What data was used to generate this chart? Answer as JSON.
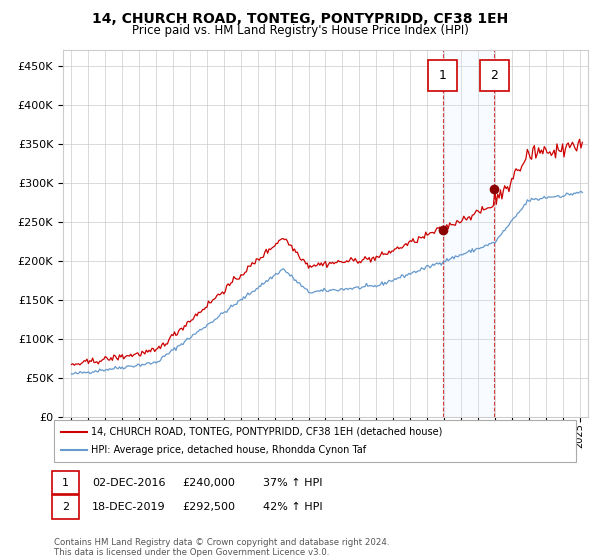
{
  "title": "14, CHURCH ROAD, TONTEG, PONTYPRIDD, CF38 1EH",
  "subtitle": "Price paid vs. HM Land Registry's House Price Index (HPI)",
  "legend_label_red": "14, CHURCH ROAD, TONTEG, PONTYPRIDD, CF38 1EH (detached house)",
  "legend_label_blue": "HPI: Average price, detached house, Rhondda Cynon Taf",
  "annotation1_date": "02-DEC-2016",
  "annotation1_price": "£240,000",
  "annotation1_hpi": "37% ↑ HPI",
  "annotation2_date": "18-DEC-2019",
  "annotation2_price": "£292,500",
  "annotation2_hpi": "42% ↑ HPI",
  "sale1_year": 2016.92,
  "sale2_year": 2019.96,
  "sale1_price": 240000,
  "sale2_price": 292500,
  "ylim": [
    0,
    470000
  ],
  "xlim_start": 1994.5,
  "xlim_end": 2025.5,
  "background_color": "#ffffff",
  "grid_color": "#cccccc",
  "red_color": "#cc0000",
  "blue_color": "#6699cc",
  "shading_color": "#ddeeff",
  "footer": "Contains HM Land Registry data © Crown copyright and database right 2024.\nThis data is licensed under the Open Government Licence v3.0."
}
